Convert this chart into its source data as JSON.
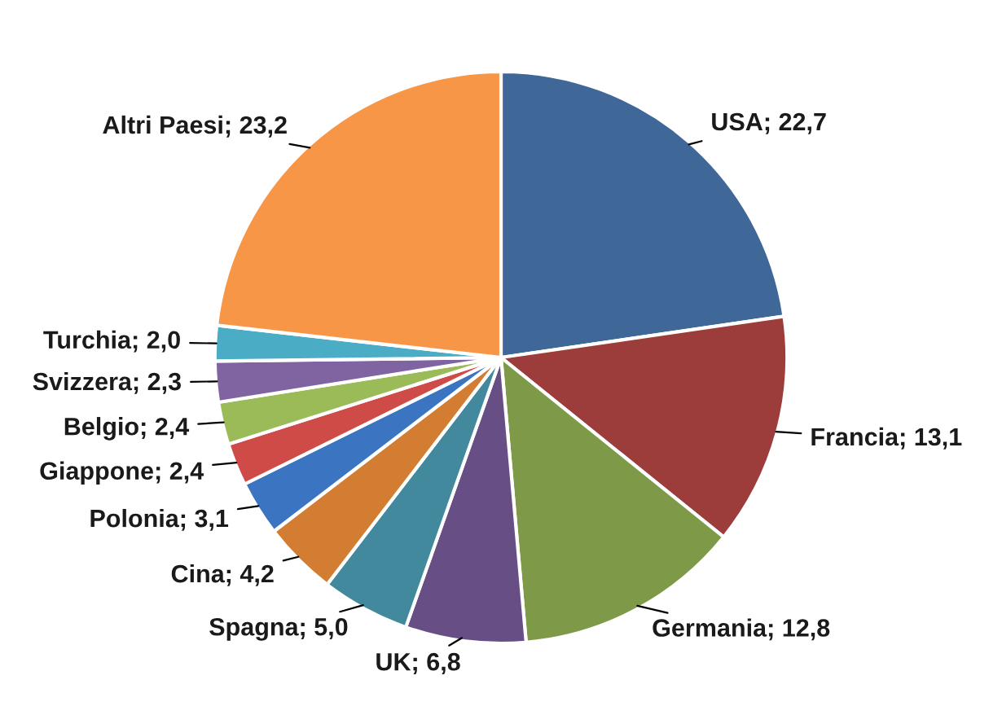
{
  "chart_data": {
    "type": "pie",
    "categories": [
      "USA",
      "Francia",
      "Germania",
      "UK",
      "Spagna",
      "Cina",
      "Polonia",
      "Giappone",
      "Belgio",
      "Svizzera",
      "Turchia",
      "Altri Paesi"
    ],
    "values": [
      22.7,
      13.1,
      12.8,
      6.8,
      5.0,
      4.2,
      3.1,
      2.4,
      2.4,
      2.3,
      2.0,
      23.2
    ],
    "value_labels": [
      "22,7",
      "13,1",
      "12,8",
      "6,8",
      "5,0",
      "4,2",
      "3,1",
      "2,4",
      "2,4",
      "2,3",
      "2,0",
      "23,2"
    ],
    "colors": [
      "#3f6797",
      "#9c3d3b",
      "#7e9a48",
      "#674f86",
      "#43899e",
      "#d27d32",
      "#3b74c0",
      "#cf4b48",
      "#9bbb59",
      "#8064a2",
      "#4bacc6",
      "#f79646"
    ],
    "legend": false
  }
}
